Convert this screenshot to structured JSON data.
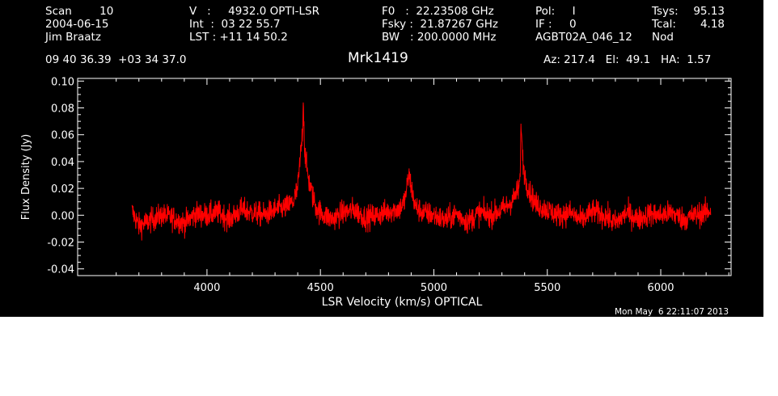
{
  "header": {
    "col1": [
      "Scan        10",
      "2004-06-15",
      "Jim Braatz"
    ],
    "col2": [
      "V   :     4932.0 OPTI-LSR",
      "Int  :  03 22 55.7",
      "LST : +11 14 50.2"
    ],
    "col3": [
      "F0   :  22.23508 GHz",
      "Fsky :  21.87267 GHz",
      "BW   : 200.0000 MHz"
    ],
    "col4": [
      "Pol:     I",
      "IF :     0",
      "AGBT02A_046_12"
    ],
    "col5_labels": [
      "Tsys:",
      "Tcal:",
      "Nod"
    ],
    "col5_values": [
      "95.13",
      "4.18",
      ""
    ],
    "coords": "09 40 36.39  +03 34 37.0",
    "source": "Mrk1419",
    "azel": "Az: 217.4   El:  49.1   HA:  1.57",
    "timestamp": "Mon May  6 22:11:07 2013"
  },
  "colors": {
    "background": "#000000",
    "axes": "#ffffff",
    "trace": "#ff0000"
  },
  "chart_data": {
    "type": "line",
    "xlabel": "LSR Velocity (km/s) OPTICAL",
    "ylabel": "Flux Density (Jy)",
    "xlim": [
      3430,
      6310
    ],
    "ylim": [
      -0.045,
      0.102
    ],
    "xticks": [
      4000,
      4500,
      5000,
      5500,
      6000
    ],
    "yticks": [
      -0.04,
      -0.02,
      0.0,
      0.02,
      0.04,
      0.06,
      0.08,
      0.1
    ],
    "ytick_labels": [
      "-0.04",
      "-0.02",
      "0.00",
      "0.02",
      "0.04",
      "0.06",
      "0.08",
      "0.10"
    ],
    "grid": false,
    "series": [
      {
        "x": [
          3670,
          3700,
          3750,
          3800,
          3850,
          3900,
          3950,
          4000,
          4050,
          4100,
          4150,
          4200,
          4250,
          4300,
          4350,
          4380,
          4400,
          4410,
          4420,
          4425,
          4430,
          4440,
          4450,
          4460,
          4480,
          4500,
          4550,
          4600,
          4650,
          4700,
          4750,
          4800,
          4850,
          4870,
          4880,
          4890,
          4900,
          4910,
          4920,
          4950,
          5000,
          5050,
          5100,
          5150,
          5200,
          5250,
          5300,
          5330,
          5350,
          5370,
          5380,
          5385,
          5390,
          5400,
          5420,
          5450,
          5500,
          5550,
          5600,
          5650,
          5700,
          5750,
          5800,
          5850,
          5900,
          5950,
          6000,
          6050,
          6100,
          6150,
          6200,
          6220
        ],
        "y": [
          0.003,
          -0.008,
          -0.004,
          0.0,
          -0.002,
          -0.006,
          0.001,
          0.0,
          0.002,
          -0.003,
          0.004,
          0.002,
          0.0,
          0.004,
          0.006,
          0.01,
          0.02,
          0.04,
          0.06,
          0.086,
          0.05,
          0.035,
          0.025,
          0.018,
          0.006,
          0.002,
          -0.003,
          0.002,
          0.004,
          -0.002,
          0.0,
          0.003,
          0.005,
          0.01,
          0.02,
          0.03,
          0.022,
          0.012,
          0.006,
          0.002,
          0.0,
          -0.004,
          0.001,
          -0.005,
          0.002,
          0.0,
          0.004,
          0.008,
          0.012,
          0.018,
          0.025,
          0.072,
          0.045,
          0.03,
          0.018,
          0.008,
          0.004,
          0.0,
          0.002,
          -0.004,
          0.003,
          0.0,
          -0.006,
          0.002,
          -0.003,
          0.001,
          0.0,
          0.002,
          -0.003,
          0.0,
          0.002,
          0.004
        ]
      }
    ]
  }
}
